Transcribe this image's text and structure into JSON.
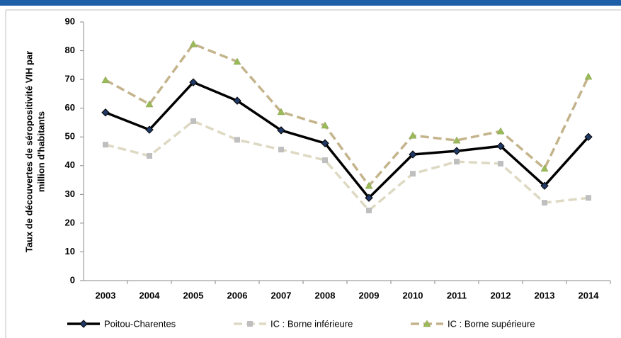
{
  "chart_data": {
    "type": "line",
    "ylabel": [
      "Taux de découvertes de séropositivité  VIH par",
      "million d'habitants"
    ],
    "categories": [
      "2003",
      "2004",
      "2005",
      "2006",
      "2007",
      "2008",
      "2009",
      "2010",
      "2011",
      "2012",
      "2013",
      "2014"
    ],
    "series": [
      {
        "name": "Poitou-Charentes",
        "color": "#000000",
        "marker": "diamond",
        "marker_color": "#1f3864",
        "dashed": false,
        "values": [
          58.5,
          52.5,
          69,
          62.6,
          52.3,
          47.8,
          28.8,
          43.9,
          45.1,
          46.8,
          33,
          50
        ]
      },
      {
        "name": "IC : Borne inférieure",
        "color": "#ddd9c3",
        "marker": "square",
        "marker_color": "#bfbfbf",
        "dashed": true,
        "values": [
          47.3,
          43.4,
          55.5,
          49,
          45.6,
          41.9,
          24.4,
          37.2,
          41.4,
          40.7,
          27.1,
          28.8
        ]
      },
      {
        "name": "IC : Borne supérieure",
        "color": "#c4b48c",
        "marker": "triangle",
        "marker_color": "#9bbb59",
        "dashed": true,
        "values": [
          69.8,
          61.4,
          82.3,
          76.2,
          58.7,
          54,
          33,
          50.5,
          48.8,
          52,
          39,
          71
        ]
      }
    ],
    "ylim": [
      0,
      90
    ],
    "yticks": [
      0,
      10,
      20,
      30,
      40,
      50,
      60,
      70,
      80,
      90
    ],
    "grid": false
  }
}
